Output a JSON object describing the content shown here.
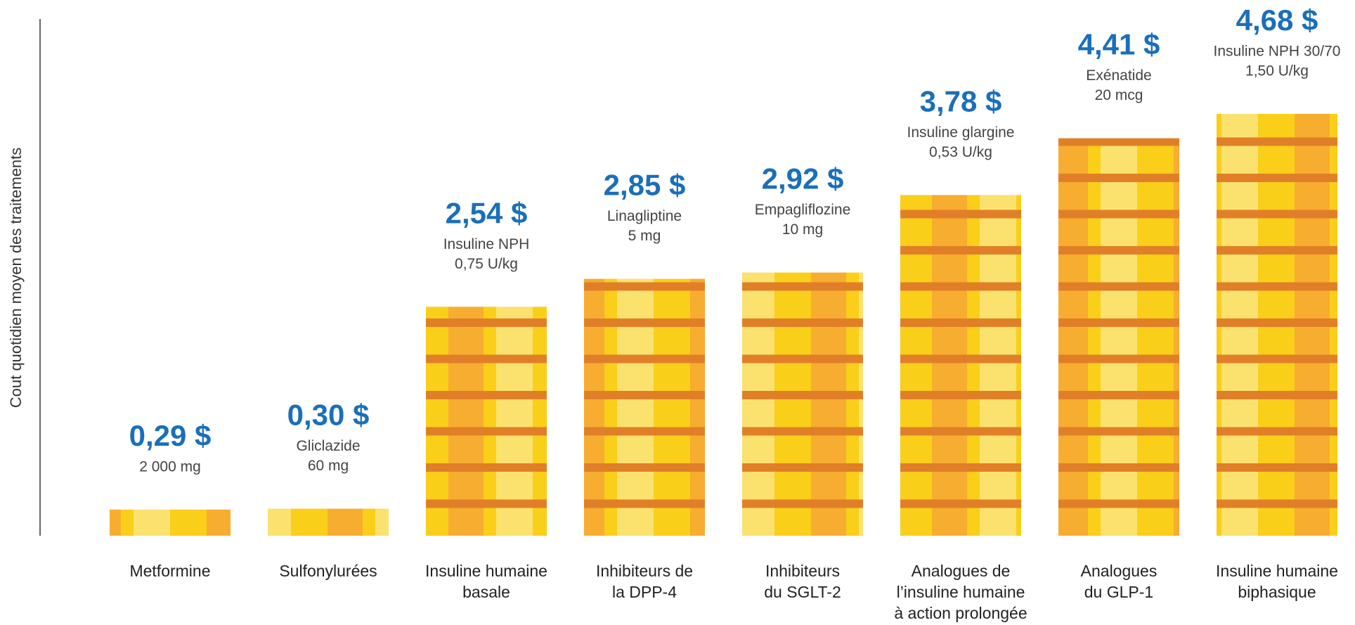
{
  "chart_data": {
    "type": "coin-stack",
    "y_label": "Cout quotidien moyen des traitements",
    "categories": [
      [
        "Metformine"
      ],
      [
        "Sulfonylurées"
      ],
      [
        "Insuline humaine",
        "basale"
      ],
      [
        "Inhibiteurs de",
        "la DPP-4"
      ],
      [
        "Inhibiteurs",
        "du SGLT-2"
      ],
      [
        "Analogues de",
        "l’insuline humaine",
        "à action prolongée"
      ],
      [
        "Analogues",
        "du GLP-1"
      ],
      [
        "Insuline humaine",
        "biphasique"
      ]
    ],
    "values": [
      0.29,
      0.3,
      2.54,
      2.85,
      2.92,
      3.78,
      4.41,
      4.68
    ],
    "value_labels": [
      "0,29 $",
      "0,30 $",
      "2,54 $",
      "2,85 $",
      "2,92 $",
      "3,78 $",
      "4,41 $",
      "4,68 $"
    ],
    "details": [
      [
        "2 000 mg"
      ],
      [
        "Gliclazide",
        "60 mg"
      ],
      [
        "Insuline NPH",
        "0,75 U/kg"
      ],
      [
        "Linagliptine",
        "5 mg"
      ],
      [
        "Empagliflozine",
        "10 mg"
      ],
      [
        "Insuline glargine",
        "0,53 U/kg"
      ],
      [
        "Exénatide",
        "20 mcg"
      ],
      [
        "Insuline NPH 30/70",
        "1,50 U/kg"
      ]
    ],
    "label_color": "#1a6fba"
  }
}
